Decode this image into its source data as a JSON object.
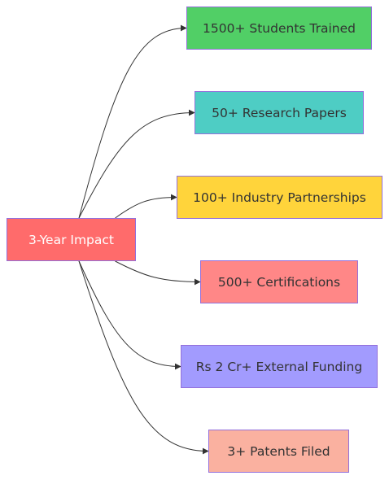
{
  "root": {
    "label": "3-Year Impact",
    "color": "#ff6b6b"
  },
  "edge_color": "#333333",
  "node_border_color": "#9370db",
  "outcomes": [
    {
      "label": "1500+ Students Trained",
      "color": "#51cf66"
    },
    {
      "label": "50+ Research Papers",
      "color": "#4ecdc4"
    },
    {
      "label": "100+ Industry Partnerships",
      "color": "#ffd43b"
    },
    {
      "label": "500+ Certifications",
      "color": "#ff8787"
    },
    {
      "label": "Rs 2 Cr+ External Funding",
      "color": "#a29bfe"
    },
    {
      "label": "3+ Patents Filed",
      "color": "#fab1a0"
    }
  ]
}
